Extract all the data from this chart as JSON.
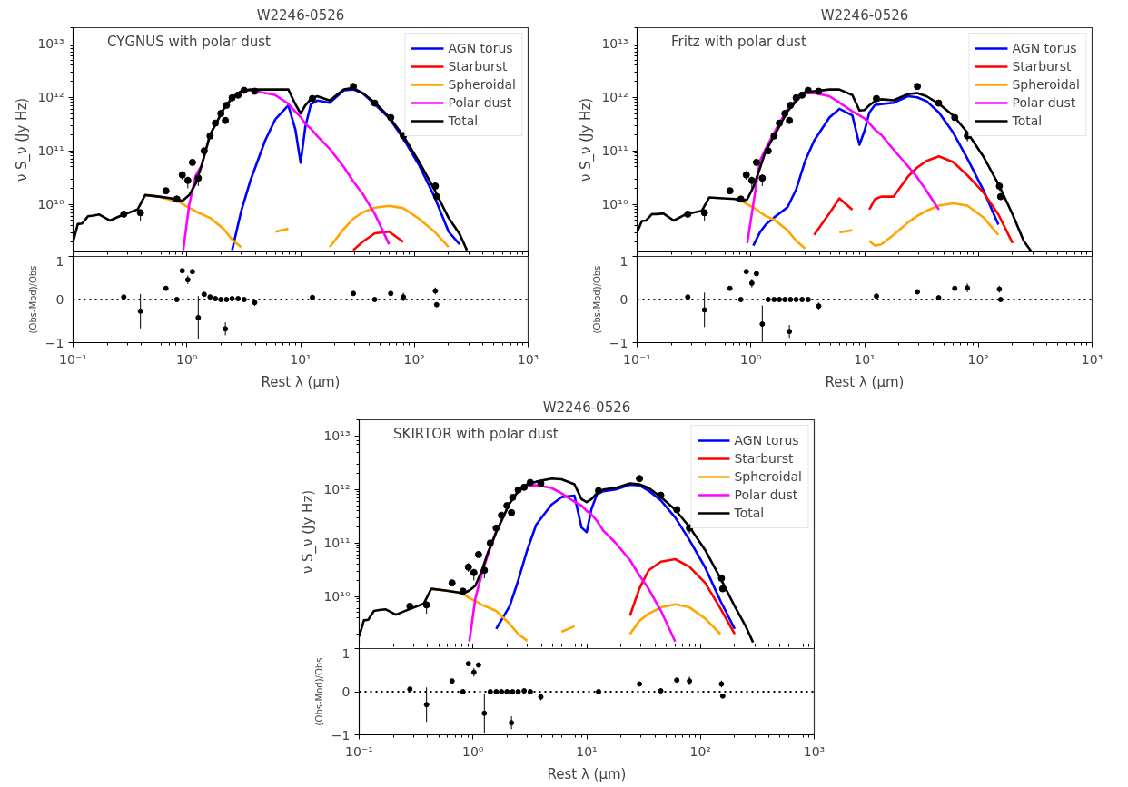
{
  "chart_data": [
    {
      "type": "line",
      "title": "W2246-0526",
      "annotations": [
        "CYGNUS with polar dust"
      ],
      "ylabel": "ν S_ν (Jy Hz)",
      "log": "xy",
      "legend": "top right",
      "tick_labels": "y",
      "xlim": [
        0.1,
        1000
      ],
      "ylim": [
        1300000000.0,
        20000000000000.0
      ],
      "xticks": [
        {
          "value": 0.1,
          "label": null
        },
        {
          "value": 1,
          "label": null
        },
        {
          "value": 10,
          "label": null
        },
        {
          "value": 100,
          "label": null
        },
        {
          "value": 1000,
          "label": null
        }
      ],
      "yticks": [
        {
          "value": 10000000000.0,
          "label": "10¹⁰"
        },
        {
          "value": 100000000000.0,
          "label": "10¹¹"
        },
        {
          "value": 1000000000000.0,
          "label": "10¹²"
        },
        {
          "value": 10000000000000.0,
          "label": "10¹³"
        }
      ],
      "x": [
        0.1,
        0.11,
        0.12,
        0.135,
        0.15,
        0.17,
        0.21,
        0.27,
        0.37,
        0.43,
        0.57,
        0.73,
        0.83,
        0.93,
        1.05,
        1.2,
        1.35,
        1.6,
        2.1,
        2.5,
        3.0,
        3.6,
        4.9,
        6,
        7.8,
        9,
        10,
        11,
        12.3,
        14,
        18,
        24,
        29,
        35,
        45,
        60,
        80,
        110,
        150,
        200,
        250,
        290
      ],
      "series": [
        {
          "name": "AGN torus",
          "color": "#0000ff",
          "values": [
            null,
            null,
            null,
            null,
            null,
            null,
            null,
            null,
            null,
            null,
            null,
            null,
            null,
            null,
            null,
            null,
            null,
            null,
            null,
            1400000000.0,
            7400000000.0,
            27000000000.0,
            160000000000.0,
            390000000000.0,
            710000000000.0,
            250000000000.0,
            60000000000.0,
            280000000000.0,
            740000000000.0,
            870000000000.0,
            790000000000.0,
            1350000000000.0,
            1400000000000.0,
            1200000000000.0,
            740000000000.0,
            410000000000.0,
            170000000000.0,
            54000000000.0,
            14000000000.0,
            3100000000.0,
            1800000000.0,
            null
          ]
        },
        {
          "name": "Starburst",
          "color": "#ff0000",
          "values": [
            null,
            null,
            null,
            null,
            null,
            null,
            null,
            null,
            null,
            null,
            null,
            null,
            null,
            null,
            null,
            null,
            null,
            null,
            null,
            null,
            null,
            null,
            null,
            null,
            null,
            null,
            null,
            null,
            null,
            null,
            null,
            null,
            1400000000.0,
            2000000000.0,
            2900000000.0,
            3100000000.0,
            2000000000.0,
            null,
            null,
            null,
            null,
            null
          ]
        },
        {
          "name": "Spheroidal",
          "color": "#ffa500",
          "values": [
            null,
            null,
            null,
            null,
            null,
            null,
            null,
            null,
            null,
            15000000000.0,
            14000000000.0,
            12000000000.0,
            11500000000.0,
            10000000000.0,
            8700000000.0,
            7400000000.0,
            6600000000.0,
            5600000000.0,
            3500000000.0,
            2200000000.0,
            1600000000.0,
            null,
            null,
            3100000000.0,
            3500000000.0,
            null,
            null,
            null,
            null,
            null,
            1600000000.0,
            3500000000.0,
            5400000000.0,
            7100000000.0,
            8700000000.0,
            9400000000.0,
            8500000000.0,
            5400000000.0,
            3100000000.0,
            1600000000.0,
            null,
            null
          ]
        },
        {
          "name": "Polar dust",
          "color": "#ff00ff",
          "values": [
            null,
            null,
            null,
            null,
            null,
            null,
            null,
            null,
            null,
            null,
            null,
            null,
            null,
            1400000000.0,
            10000000000.0,
            35000000000.0,
            54000000000.0,
            200000000000.0,
            600000000000.0,
            980000000000.0,
            1300000000000.0,
            1350000000000.0,
            1200000000000.0,
            1100000000000.0,
            760000000000.0,
            540000000000.0,
            430000000000.0,
            320000000000.0,
            260000000000.0,
            190000000000.0,
            110000000000.0,
            50000000000.0,
            27000000000.0,
            16000000000.0,
            6600000000.0,
            1800000000.0,
            null,
            null,
            null,
            null,
            null,
            null
          ]
        },
        {
          "name": "Total",
          "color": "#000000",
          "values": [
            2000000000.0,
            4300000000.0,
            4400000000.0,
            6000000000.0,
            6200000000.0,
            6500000000.0,
            5000000000.0,
            6300000000.0,
            8100000000.0,
            15000000000.0,
            14000000000.0,
            13000000000.0,
            11500000000.0,
            12000000000.0,
            15000000000.0,
            25000000000.0,
            54000000000.0,
            200000000000.0,
            600000000000.0,
            980000000000.0,
            1300000000000.0,
            1400000000000.0,
            1400000000000.0,
            1400000000000.0,
            1400000000000.0,
            740000000000.0,
            500000000000.0,
            710000000000.0,
            930000000000.0,
            1050000000000.0,
            870000000000.0,
            1400000000000.0,
            1500000000000.0,
            1200000000000.0,
            800000000000.0,
            430000000000.0,
            190000000000.0,
            63000000000.0,
            19000000000.0,
            5600000000.0,
            2800000000.0,
            1400000000.0
          ]
        },
        {
          "type": "scatter",
          "color": "#000000",
          "marker": "circle",
          "x": [
            0.279,
            0.391,
            0.655,
            0.817,
            0.912,
            1.02,
            1.12,
            1.26,
            1.42,
            1.6,
            1.78,
            1.99,
            2.18,
            2.23,
            2.5,
            2.82,
            3.19,
            3.95,
            12.7,
            29.1,
            44.8,
            62,
            80,
            153,
            157
          ],
          "values": [
            6600000000.0,
            7000000000.0,
            18000000000.0,
            12600000000.0,
            35500000000.0,
            28000000000.0,
            61000000000.0,
            31000000000.0,
            100000000000.0,
            190000000000.0,
            330000000000.0,
            500000000000.0,
            370000000000.0,
            710000000000.0,
            980000000000.0,
            1100000000000.0,
            1350000000000.0,
            1300000000000.0,
            950000000000.0,
            1600000000000.0,
            780000000000.0,
            420000000000.0,
            190000000000.0,
            22000000000.0,
            14000000000.0
          ],
          "errors": [
            null,
            [
              4800000000.0,
              8000000000.0
            ],
            null,
            null,
            [
              29000000000.0,
              42000000000.0
            ],
            [
              20000000000.0,
              33000000000.0
            ],
            null,
            [
              22000000000.0,
              36000000000.0
            ],
            null,
            null,
            null,
            null,
            null,
            null,
            null,
            null,
            null,
            null,
            null,
            null,
            null,
            null,
            [
              150000000000.0,
              230000000000.0
            ],
            [
              18000000000.0,
              26000000000.0
            ],
            null
          ]
        }
      ]
    },
    {
      "type": "line",
      "title": "W2246-0526",
      "annotations": [
        "Fritz with polar dust"
      ],
      "ylabel": "ν S_ν (Jy Hz)",
      "log": "xy",
      "legend": "top right",
      "tick_labels": "y",
      "xlim": [
        0.1,
        1000
      ],
      "ylim": [
        1300000000.0,
        20000000000000.0
      ],
      "xticks": [
        {
          "value": 0.1,
          "label": null
        },
        {
          "value": 1,
          "label": null
        },
        {
          "value": 10,
          "label": null
        },
        {
          "value": 100,
          "label": null
        },
        {
          "value": 1000,
          "label": null
        }
      ],
      "yticks": [
        {
          "value": 10000000000.0,
          "label": "10¹⁰"
        },
        {
          "value": 100000000000.0,
          "label": "10¹¹"
        },
        {
          "value": 1000000000000.0,
          "label": "10¹²"
        },
        {
          "value": 10000000000000.0,
          "label": "10¹³"
        }
      ],
      "x": [
        0.1,
        0.11,
        0.12,
        0.135,
        0.15,
        0.17,
        0.21,
        0.27,
        0.37,
        0.43,
        0.57,
        0.73,
        0.83,
        0.93,
        1.05,
        1.2,
        1.35,
        1.6,
        2.1,
        2.5,
        3.0,
        3.6,
        4.9,
        6,
        7.8,
        9,
        10,
        11,
        12.3,
        14,
        18,
        24,
        29,
        35,
        45,
        60,
        80,
        110,
        150,
        200,
        250,
        290
      ],
      "series": [
        {
          "name": "AGN torus",
          "color": "#0000ff",
          "values": [
            null,
            null,
            null,
            null,
            null,
            null,
            null,
            null,
            null,
            null,
            null,
            null,
            null,
            null,
            1700000000.0,
            3000000000.0,
            4200000000.0,
            5700000000.0,
            8900000000.0,
            19000000000.0,
            65000000000.0,
            155000000000.0,
            420000000000.0,
            610000000000.0,
            460000000000.0,
            130000000000.0,
            240000000000.0,
            520000000000.0,
            720000000000.0,
            750000000000.0,
            790000000000.0,
            1050000000000.0,
            1000000000000.0,
            850000000000.0,
            520000000000.0,
            220000000000.0,
            72000000000.0,
            19000000000.0,
            4200000000.0,
            null,
            null,
            null
          ]
        },
        {
          "name": "Starburst",
          "color": "#ff0000",
          "values": [
            null,
            null,
            null,
            null,
            null,
            null,
            null,
            null,
            null,
            null,
            null,
            null,
            null,
            null,
            null,
            null,
            null,
            null,
            null,
            null,
            null,
            2700000000.0,
            6800000000.0,
            13000000000.0,
            8000000000.0,
            null,
            null,
            8000000000.0,
            12500000000.0,
            14000000000.0,
            14000000000.0,
            33000000000.0,
            49000000000.0,
            65000000000.0,
            79000000000.0,
            62000000000.0,
            35000000000.0,
            17000000000.0,
            6500000000.0,
            1900000000.0,
            null,
            null
          ]
        },
        {
          "name": "Spheroidal",
          "color": "#ffa500",
          "values": [
            null,
            null,
            null,
            null,
            null,
            null,
            null,
            null,
            null,
            null,
            null,
            12600000000.0,
            11500000000.0,
            10000000000.0,
            8900000000.0,
            7200000000.0,
            6100000000.0,
            5200000000.0,
            3300000000.0,
            2100000000.0,
            1500000000.0,
            null,
            null,
            3000000000.0,
            3300000000.0,
            null,
            null,
            2100000000.0,
            1700000000.0,
            1800000000.0,
            2700000000.0,
            4600000000.0,
            6100000000.0,
            7600000000.0,
            9500000000.0,
            10500000000.0,
            9500000000.0,
            5800000000.0,
            2700000000.0,
            null,
            null,
            null
          ]
        },
        {
          "name": "Polar dust",
          "color": "#ff00ff",
          "values": [
            null,
            null,
            null,
            null,
            null,
            null,
            null,
            null,
            null,
            null,
            null,
            null,
            null,
            1900000000.0,
            10000000000.0,
            65000000000.0,
            110000000000.0,
            220000000000.0,
            610000000000.0,
            900000000000.0,
            1200000000000.0,
            1200000000000.0,
            1050000000000.0,
            800000000000.0,
            550000000000.0,
            460000000000.0,
            400000000000.0,
            330000000000.0,
            250000000000.0,
            200000000000.0,
            105000000000.0,
            52000000000.0,
            32000000000.0,
            18000000000.0,
            8000000000.0,
            null,
            null,
            null,
            null,
            null,
            null,
            null
          ]
        },
        {
          "name": "Total",
          "color": "#000000",
          "values": [
            3000000000.0,
            4900000000.0,
            5000000000.0,
            6600000000.0,
            6600000000.0,
            6800000000.0,
            5000000000.0,
            6600000000.0,
            7600000000.0,
            13500000000.0,
            13000000000.0,
            12600000000.0,
            11500000000.0,
            12500000000.0,
            21000000000.0,
            47000000000.0,
            100000000000.0,
            190000000000.0,
            550000000000.0,
            850000000000.0,
            1250000000000.0,
            1300000000000.0,
            1400000000000.0,
            1400000000000.0,
            1100000000000.0,
            570000000000.0,
            580000000000.0,
            710000000000.0,
            850000000000.0,
            920000000000.0,
            880000000000.0,
            1150000000000.0,
            1200000000000.0,
            1050000000000.0,
            760000000000.0,
            460000000000.0,
            220000000000.0,
            80000000000.0,
            24000000000.0,
            6500000000.0,
            2100000000.0,
            1350000000.0
          ]
        },
        {
          "type": "scatter",
          "color": "#000000",
          "marker": "circle",
          "x": [
            0.279,
            0.391,
            0.655,
            0.817,
            0.912,
            1.02,
            1.12,
            1.26,
            1.42,
            1.6,
            1.78,
            1.99,
            2.18,
            2.23,
            2.5,
            2.82,
            3.19,
            3.95,
            12.7,
            29.1,
            44.8,
            62,
            80,
            153,
            157
          ],
          "values": [
            6600000000.0,
            7000000000.0,
            18000000000.0,
            12600000000.0,
            35500000000.0,
            28000000000.0,
            61000000000.0,
            31000000000.0,
            100000000000.0,
            190000000000.0,
            330000000000.0,
            500000000000.0,
            370000000000.0,
            710000000000.0,
            980000000000.0,
            1100000000000.0,
            1350000000000.0,
            1300000000000.0,
            950000000000.0,
            1600000000000.0,
            780000000000.0,
            420000000000.0,
            190000000000.0,
            22000000000.0,
            14000000000.0
          ],
          "errors": [
            null,
            [
              4800000000.0,
              8000000000.0
            ],
            null,
            null,
            [
              29000000000.0,
              42000000000.0
            ],
            [
              20000000000.0,
              33000000000.0
            ],
            null,
            [
              22000000000.0,
              36000000000.0
            ],
            null,
            null,
            null,
            null,
            null,
            null,
            null,
            null,
            null,
            null,
            null,
            null,
            null,
            null,
            [
              150000000000.0,
              230000000000.0
            ],
            [
              18000000000.0,
              26000000000.0
            ],
            null
          ]
        }
      ]
    },
    {
      "type": "scatter",
      "xlabel": "Rest λ (μm)",
      "ylabel": "(Obs-Mod)/Obs",
      "log": "x",
      "marker": "circle",
      "xlim": [
        0.1,
        1000
      ],
      "ylim": [
        -1,
        1
      ],
      "xticks": [
        {
          "value": 0.1,
          "label": "10⁻¹"
        },
        {
          "value": 1,
          "label": "10⁰"
        },
        {
          "value": 10,
          "label": "10¹"
        },
        {
          "value": 100,
          "label": "10²"
        },
        {
          "value": 1000,
          "label": "10³"
        }
      ],
      "yticks": [
        {
          "value": -1,
          "label": "−1"
        },
        0,
        1
      ],
      "ref_lines": [
        {
          "axis": "y",
          "value": 0,
          "line_style": "dotted",
          "color": "#000000"
        }
      ],
      "x": [
        0.279,
        0.391,
        0.655,
        0.817,
        0.912,
        1.02,
        1.12,
        1.26,
        1.42,
        1.6,
        1.78,
        1.99,
        2.18,
        2.23,
        2.5,
        2.82,
        3.19,
        3.95,
        12.7,
        29.1,
        44.8,
        62,
        80,
        153,
        157
      ],
      "values": [
        0.06,
        -0.27,
        0.26,
        0,
        0.67,
        0.46,
        0.65,
        -0.42,
        0.12,
        0.06,
        0.02,
        0,
        -0.68,
        0,
        0.02,
        0.02,
        0,
        -0.07,
        0.05,
        0.14,
        0,
        0.14,
        0.06,
        0.2,
        -0.12
      ],
      "errors": [
        null,
        0.4,
        null,
        null,
        null,
        0.1,
        null,
        0.5,
        null,
        null,
        null,
        null,
        0.15,
        null,
        null,
        null,
        null,
        0.08,
        null,
        null,
        null,
        null,
        0.1,
        0.08,
        null
      ]
    },
    {
      "type": "scatter",
      "xlabel": "Rest λ (μm)",
      "ylabel": "(Obs-Mod)/Obs",
      "log": "x",
      "marker": "circle",
      "xlim": [
        0.1,
        1000
      ],
      "ylim": [
        -1,
        1
      ],
      "xticks": [
        {
          "value": 0.1,
          "label": "10⁻¹"
        },
        {
          "value": 1,
          "label": "10⁰"
        },
        {
          "value": 10,
          "label": "10¹"
        },
        {
          "value": 100,
          "label": "10²"
        },
        {
          "value": 1000,
          "label": "10³"
        }
      ],
      "yticks": [
        {
          "value": -1,
          "label": "−1"
        },
        0,
        1
      ],
      "ref_lines": [
        {
          "axis": "y",
          "value": 0,
          "line_style": "dotted",
          "color": "#000000"
        }
      ],
      "x": [
        0.279,
        0.391,
        0.655,
        0.817,
        0.912,
        1.02,
        1.12,
        1.26,
        1.42,
        1.6,
        1.78,
        1.99,
        2.18,
        2.23,
        2.5,
        2.82,
        3.19,
        3.95,
        12.7,
        29.1,
        44.8,
        62,
        80,
        153,
        157
      ],
      "values": [
        0.06,
        -0.24,
        0.26,
        0,
        0.65,
        0.38,
        0.6,
        -0.57,
        0,
        0,
        0,
        0,
        -0.74,
        0,
        0,
        0,
        0,
        -0.15,
        0.08,
        0.18,
        0.04,
        0.26,
        0.27,
        0.24,
        0
      ],
      "errors": [
        null,
        0.4,
        null,
        null,
        null,
        0.1,
        null,
        0.43,
        null,
        null,
        null,
        null,
        0.15,
        null,
        null,
        null,
        null,
        0.08,
        null,
        null,
        null,
        null,
        0.1,
        0.08,
        null
      ]
    },
    {
      "type": "line",
      "title": "W2246-0526",
      "annotations": [
        "SKIRTOR with polar dust"
      ],
      "ylabel": "ν S_ν (Jy Hz)",
      "log": "xy",
      "legend": "top right",
      "tick_labels": "y",
      "xlim": [
        0.1,
        1000
      ],
      "ylim": [
        1300000000.0,
        20000000000000.0
      ],
      "xticks": [
        {
          "value": 0.1,
          "label": null
        },
        {
          "value": 1,
          "label": null
        },
        {
          "value": 10,
          "label": null
        },
        {
          "value": 100,
          "label": null
        },
        {
          "value": 1000,
          "label": null
        }
      ],
      "yticks": [
        {
          "value": 10000000000.0,
          "label": "10¹⁰"
        },
        {
          "value": 100000000000.0,
          "label": "10¹¹"
        },
        {
          "value": 1000000000000.0,
          "label": "10¹²"
        },
        {
          "value": 10000000000000.0,
          "label": "10¹³"
        }
      ],
      "x": [
        0.1,
        0.11,
        0.12,
        0.135,
        0.15,
        0.17,
        0.21,
        0.27,
        0.37,
        0.43,
        0.57,
        0.73,
        0.83,
        0.93,
        1.05,
        1.2,
        1.35,
        1.6,
        2.1,
        2.5,
        3.0,
        3.6,
        4.9,
        6,
        7.8,
        9,
        10,
        11,
        12.3,
        14,
        18,
        24,
        29,
        35,
        45,
        60,
        80,
        110,
        150,
        200,
        250,
        290
      ],
      "series": [
        {
          "name": "AGN torus",
          "color": "#0000ff",
          "values": [
            null,
            null,
            null,
            null,
            null,
            null,
            null,
            null,
            null,
            null,
            null,
            null,
            null,
            null,
            null,
            null,
            null,
            2500000000.0,
            6600000000.0,
            20000000000.0,
            74000000000.0,
            220000000000.0,
            520000000000.0,
            720000000000.0,
            770000000000.0,
            195000000000.0,
            160000000000.0,
            430000000000.0,
            810000000000.0,
            930000000000.0,
            1000000000000.0,
            1230000000000.0,
            1200000000000.0,
            950000000000.0,
            620000000000.0,
            300000000000.0,
            114000000000.0,
            35000000000.0,
            8300000000.0,
            2500000000.0,
            null,
            null
          ]
        },
        {
          "name": "Starburst",
          "color": "#ff0000",
          "values": [
            null,
            null,
            null,
            null,
            null,
            null,
            null,
            null,
            null,
            null,
            null,
            null,
            null,
            null,
            null,
            null,
            null,
            null,
            null,
            null,
            null,
            null,
            null,
            null,
            null,
            null,
            null,
            null,
            null,
            null,
            null,
            4400000000.0,
            14000000000.0,
            31000000000.0,
            45000000000.0,
            50000000000.0,
            36000000000.0,
            18000000000.0,
            6000000000.0,
            2000000000.0,
            null,
            null
          ]
        },
        {
          "name": "Spheroidal",
          "color": "#ffa500",
          "values": [
            null,
            null,
            null,
            null,
            null,
            null,
            null,
            null,
            null,
            14000000000.0,
            13000000000.0,
            12000000000.0,
            11000000000.0,
            9400000000.0,
            8300000000.0,
            7000000000.0,
            6300000000.0,
            5400000000.0,
            3100000000.0,
            2000000000.0,
            1500000000.0,
            null,
            null,
            2200000000.0,
            2800000000.0,
            null,
            null,
            null,
            null,
            null,
            null,
            2000000000.0,
            3500000000.0,
            4800000000.0,
            6300000000.0,
            7200000000.0,
            6300000000.0,
            3900000000.0,
            2000000000.0,
            null,
            null,
            null
          ]
        },
        {
          "name": "Polar dust",
          "color": "#ff00ff",
          "values": [
            null,
            null,
            null,
            null,
            null,
            null,
            null,
            null,
            null,
            null,
            null,
            null,
            null,
            1450000000.0,
            9300000000.0,
            27000000000.0,
            60000000000.0,
            160000000000.0,
            550000000000.0,
            910000000000.0,
            1200000000000.0,
            1200000000000.0,
            1070000000000.0,
            850000000000.0,
            590000000000.0,
            500000000000.0,
            400000000000.0,
            340000000000.0,
            260000000000.0,
            170000000000.0,
            100000000000.0,
            48000000000.0,
            25000000000.0,
            14000000000.0,
            5400000000.0,
            1450000000.0,
            null,
            null,
            null,
            null,
            null,
            null
          ]
        },
        {
          "name": "Total",
          "color": "#000000",
          "values": [
            1800000000.0,
            3600000000.0,
            3700000000.0,
            5400000000.0,
            5600000000.0,
            5800000000.0,
            4600000000.0,
            5700000000.0,
            7400000000.0,
            14000000000.0,
            13000000000.0,
            12000000000.0,
            11500000000.0,
            13000000000.0,
            16000000000.0,
            31000000000.0,
            66000000000.0,
            160000000000.0,
            550000000000.0,
            950000000000.0,
            1250000000000.0,
            1400000000000.0,
            1600000000000.0,
            1550000000000.0,
            1250000000000.0,
            660000000000.0,
            580000000000.0,
            660000000000.0,
            850000000000.0,
            1000000000000.0,
            1070000000000.0,
            1300000000000.0,
            1250000000000.0,
            1070000000000.0,
            720000000000.0,
            420000000000.0,
            200000000000.0,
            74000000000.0,
            22000000000.0,
            6600000000.0,
            2800000000.0,
            1400000000.0
          ]
        },
        {
          "type": "scatter",
          "color": "#000000",
          "marker": "circle",
          "x": [
            0.279,
            0.391,
            0.655,
            0.817,
            0.912,
            1.02,
            1.12,
            1.26,
            1.42,
            1.6,
            1.78,
            1.99,
            2.18,
            2.23,
            2.5,
            2.82,
            3.19,
            3.95,
            12.7,
            29.1,
            44.8,
            62,
            80,
            153,
            157
          ],
          "values": [
            6600000000.0,
            7000000000.0,
            18000000000.0,
            12600000000.0,
            35500000000.0,
            28000000000.0,
            61000000000.0,
            31000000000.0,
            100000000000.0,
            190000000000.0,
            330000000000.0,
            500000000000.0,
            370000000000.0,
            710000000000.0,
            980000000000.0,
            1100000000000.0,
            1350000000000.0,
            1300000000000.0,
            950000000000.0,
            1600000000000.0,
            780000000000.0,
            420000000000.0,
            190000000000.0,
            22000000000.0,
            14000000000.0
          ],
          "errors": [
            null,
            [
              4800000000.0,
              8000000000.0
            ],
            null,
            null,
            [
              29000000000.0,
              42000000000.0
            ],
            [
              20000000000.0,
              33000000000.0
            ],
            null,
            [
              22000000000.0,
              36000000000.0
            ],
            null,
            null,
            null,
            null,
            null,
            null,
            null,
            null,
            null,
            null,
            null,
            null,
            null,
            null,
            [
              150000000000.0,
              230000000000.0
            ],
            [
              18000000000.0,
              26000000000.0
            ],
            null
          ]
        }
      ]
    },
    {
      "type": "scatter",
      "xlabel": "Rest λ (μm)",
      "ylabel": "(Obs-Mod)/Obs",
      "log": "x",
      "marker": "circle",
      "xlim": [
        0.1,
        1000
      ],
      "ylim": [
        -1,
        1
      ],
      "xticks": [
        {
          "value": 0.1,
          "label": "10⁻¹"
        },
        {
          "value": 1,
          "label": "10⁰"
        },
        {
          "value": 10,
          "label": "10¹"
        },
        {
          "value": 100,
          "label": "10²"
        },
        {
          "value": 1000,
          "label": "10³"
        }
      ],
      "yticks": [
        {
          "value": -1,
          "label": "−1"
        },
        0,
        1
      ],
      "ref_lines": [
        {
          "axis": "y",
          "value": 0,
          "line_style": "dotted",
          "color": "#000000"
        }
      ],
      "x": [
        0.279,
        0.391,
        0.655,
        0.817,
        0.912,
        1.02,
        1.12,
        1.26,
        1.42,
        1.6,
        1.78,
        1.99,
        2.18,
        2.23,
        2.5,
        2.82,
        3.19,
        3.95,
        12.7,
        29.1,
        44.8,
        62,
        80,
        153,
        157
      ],
      "values": [
        0.06,
        -0.3,
        0.25,
        0,
        0.65,
        0.45,
        0.62,
        -0.5,
        0,
        0,
        0,
        0,
        -0.72,
        0,
        0,
        0.02,
        0,
        -0.12,
        0,
        0.18,
        0.02,
        0.27,
        0.25,
        0.18,
        -0.1
      ],
      "errors": [
        null,
        0.4,
        null,
        null,
        null,
        0.1,
        null,
        0.45,
        null,
        null,
        null,
        null,
        0.15,
        null,
        null,
        null,
        null,
        0.08,
        null,
        null,
        null,
        null,
        0.1,
        0.08,
        null
      ]
    }
  ]
}
